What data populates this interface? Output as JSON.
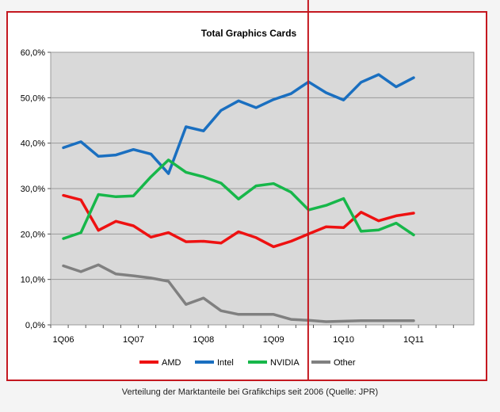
{
  "chart_data": {
    "type": "line",
    "title": "Total Graphics Cards",
    "caption": "Verteilung der Marktanteile bei Grafikchips seit 2006 (Quelle: JPR)",
    "x_tick_labels": [
      "1Q06",
      "1Q07",
      "1Q08",
      "1Q09",
      "1Q10",
      "1Q11"
    ],
    "y_tick_labels": [
      "0,0%",
      "10,0%",
      "20,0%",
      "30,0%",
      "40,0%",
      "50,0%",
      "60,0%"
    ],
    "ylim": [
      0,
      60
    ],
    "x_periods": [
      "1Q06",
      "2Q06",
      "3Q06",
      "4Q06",
      "1Q07",
      "2Q07",
      "3Q07",
      "4Q07",
      "1Q08",
      "2Q08",
      "3Q08",
      "4Q08",
      "1Q09",
      "2Q09",
      "3Q09",
      "4Q09",
      "1Q10",
      "2Q10",
      "3Q10",
      "4Q10",
      "1Q11"
    ],
    "series": [
      {
        "name": "AMD",
        "color": "#ee1111",
        "values": [
          28.5,
          27.5,
          20.8,
          22.8,
          21.8,
          19.3,
          20.3,
          18.3,
          18.4,
          18.0,
          20.5,
          19.2,
          17.2,
          18.4,
          20.0,
          21.6,
          21.4,
          24.8,
          22.9,
          24.0,
          24.6
        ]
      },
      {
        "name": "Intel",
        "color": "#1a6fc0",
        "values": [
          39.0,
          40.3,
          37.1,
          37.4,
          38.6,
          37.6,
          33.3,
          43.6,
          42.7,
          47.2,
          49.3,
          47.8,
          49.6,
          50.9,
          53.5,
          51.1,
          49.5,
          53.4,
          55.1,
          52.4,
          54.4
        ]
      },
      {
        "name": "NVIDIA",
        "color": "#17b74a",
        "values": [
          19.0,
          20.3,
          28.7,
          28.2,
          28.4,
          32.6,
          36.3,
          33.6,
          32.6,
          31.2,
          27.7,
          30.6,
          31.1,
          29.2,
          25.3,
          26.3,
          27.8,
          20.6,
          20.9,
          22.4,
          19.8
        ]
      },
      {
        "name": "Other",
        "color": "#808080",
        "values": [
          13.0,
          11.7,
          13.2,
          11.2,
          10.8,
          10.3,
          9.6,
          4.5,
          5.9,
          3.1,
          2.3,
          2.3,
          2.3,
          1.2,
          1.0,
          0.7,
          0.8,
          0.9,
          0.9,
          0.9,
          0.9
        ]
      }
    ],
    "marker_line": {
      "position_period_index": 14.0,
      "color": "#c41820"
    },
    "grid": true,
    "legend_position": "bottom"
  }
}
